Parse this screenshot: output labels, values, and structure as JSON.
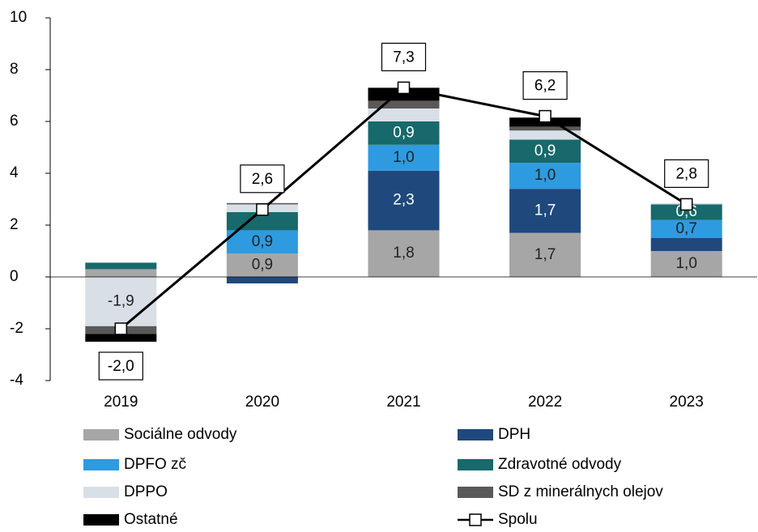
{
  "chart_data": {
    "type": "stacked-bar-line",
    "categories": [
      "2019",
      "2020",
      "2021",
      "2022",
      "2023"
    ],
    "ylim": [
      -4,
      10
    ],
    "yticks": [
      -4,
      -2,
      0,
      2,
      4,
      6,
      8,
      10
    ],
    "series": [
      {
        "name": "Sociálne odvody",
        "color": "#a6a6a6",
        "values": [
          0.3,
          0.9,
          1.8,
          1.7,
          1.0
        ],
        "value_labels": [
          null,
          "0,9",
          "1,8",
          "1,7",
          "1,0"
        ]
      },
      {
        "name": "DPH",
        "color": "#1f497d",
        "values": [
          0,
          -0.25,
          2.3,
          1.7,
          0.5
        ],
        "value_labels": [
          null,
          null,
          "2,3",
          "1,7",
          null
        ]
      },
      {
        "name": "DPFO zč",
        "color": "#2e9be0",
        "values": [
          0,
          0.9,
          1.0,
          1.0,
          0.7
        ],
        "value_labels": [
          null,
          "0,9",
          "1,0",
          "1,0",
          "0,7"
        ]
      },
      {
        "name": "Zdravotné odvody",
        "color": "#17696b",
        "values": [
          0.25,
          0.7,
          0.9,
          0.9,
          0.6
        ],
        "value_labels": [
          null,
          null,
          "0,9",
          "0,9",
          "0,6"
        ]
      },
      {
        "name": "DPPO",
        "color": "#d9dfe6",
        "values": [
          -1.9,
          0.3,
          0.5,
          0.35,
          0.05
        ],
        "value_labels": [
          "-1,9",
          null,
          null,
          null,
          null
        ]
      },
      {
        "name": "SD z minerálnych olejov",
        "color": "#595959",
        "values": [
          -0.3,
          0.05,
          0.3,
          0.15,
          0
        ],
        "value_labels": [
          null,
          null,
          null,
          null,
          null
        ]
      },
      {
        "name": "Ostatné",
        "color": "#000000",
        "values": [
          -0.3,
          0,
          0.5,
          0.35,
          0
        ],
        "value_labels": [
          null,
          null,
          null,
          null,
          null
        ]
      },
      {
        "name": "Spolu",
        "type": "line",
        "color": "#000000",
        "values": [
          -2.0,
          2.6,
          7.3,
          6.2,
          2.8
        ],
        "value_labels": [
          "-2,0",
          "2,6",
          "7,3",
          "6,2",
          "2,8"
        ]
      }
    ]
  }
}
